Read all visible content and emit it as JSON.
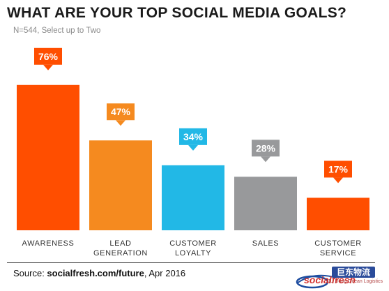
{
  "title": "WHAT ARE YOUR TOP SOCIAL MEDIA GOALS?",
  "subtitle": "N=544, Select up to Two",
  "source": {
    "prefix": "Source: ",
    "link": "socialfresh.com/future",
    "suffix": ", Apr 2016"
  },
  "watermark": {
    "brand": "socialfresh",
    "cn_text": "巨东物流",
    "sub_text": "JU Dong Ocean Logistics"
  },
  "chart_data": {
    "type": "bar",
    "title": "WHAT ARE YOUR TOP SOCIAL MEDIA GOALS?",
    "xlabel": "",
    "ylabel": "",
    "ylim": [
      0,
      100
    ],
    "grid": false,
    "categories": [
      [
        "AWARENESS"
      ],
      [
        "LEAD",
        "GENERATION"
      ],
      [
        "CUSTOMER",
        "LOYALTY"
      ],
      [
        "SALES"
      ],
      [
        "CUSTOMER",
        "SERVICE"
      ]
    ],
    "values": [
      76,
      47,
      34,
      28,
      17
    ],
    "data_labels": [
      "76%",
      "47%",
      "34%",
      "28%",
      "17%"
    ],
    "colors": [
      "#ff4e00",
      "#f58a1f",
      "#22b8e6",
      "#98999b",
      "#ff4e00"
    ]
  }
}
